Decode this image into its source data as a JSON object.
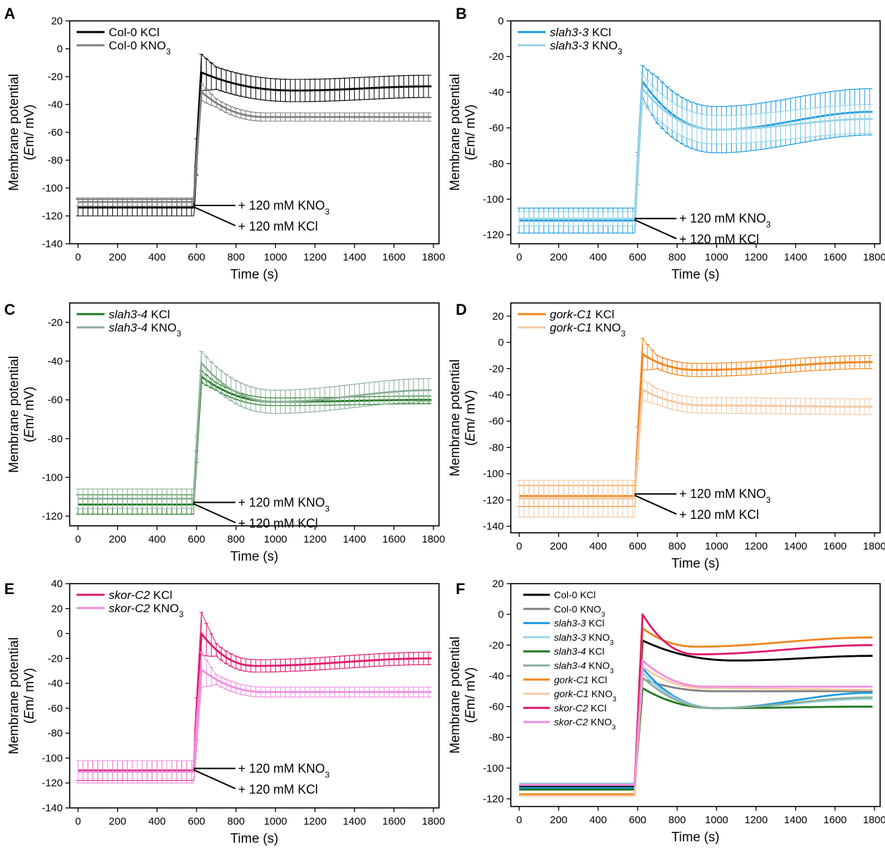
{
  "panels": [
    {
      "letter": "A",
      "ylim": [
        -140,
        20
      ],
      "yticks": [
        -140,
        -120,
        -100,
        -80,
        -60,
        -40,
        -20,
        0,
        20
      ],
      "xlim": [
        0,
        1800
      ],
      "xticks": [
        0,
        200,
        400,
        600,
        800,
        1000,
        1200,
        1400,
        1600,
        1800
      ],
      "xlabel": "Time (s)",
      "ylabel_line1": "Membrane potential",
      "ylabel_line2_pre": "(",
      "ylabel_line2_em": "E",
      "ylabel_line2_post": "m/ mV)",
      "error_bars": true,
      "series": [
        {
          "legend_italic": "",
          "legend_main": "Col-0 KCl",
          "legend_sub": "",
          "color": "#000000",
          "base": -114,
          "base_err": 6,
          "peak": -17,
          "peak_err": 13,
          "dip": -30,
          "dip_t": 1100,
          "end": -27,
          "err": 8
        },
        {
          "legend_italic": "",
          "legend_main": "Col-0 KNO",
          "legend_sub": "3",
          "color": "#808080",
          "base": -110,
          "base_err": 3,
          "peak": -31,
          "peak_err": 6,
          "dip": -49,
          "dip_t": 950,
          "end": -49,
          "err": 3
        }
      ],
      "annotations": [
        {
          "prefix": "+ 120 mM KNO",
          "sub": "3"
        },
        {
          "prefix": "+ 120 mM KCl",
          "sub": ""
        }
      ]
    },
    {
      "letter": "B",
      "ylim": [
        -125,
        0
      ],
      "yticks": [
        -120,
        -100,
        -80,
        -60,
        -40,
        -20,
        0
      ],
      "xlim": [
        0,
        1800
      ],
      "xticks": [
        0,
        200,
        400,
        600,
        800,
        1000,
        1200,
        1400,
        1600,
        1800
      ],
      "xlabel": "Time (s)",
      "ylabel_line1": "Membrane potential",
      "ylabel_line2_pre": "(",
      "ylabel_line2_em": "E",
      "ylabel_line2_post": "m/ mV)",
      "error_bars": true,
      "series": [
        {
          "legend_italic": "slah3-3",
          "legend_main": " KCl",
          "legend_sub": "",
          "color": "#1f9be0",
          "base": -112,
          "base_err": 7,
          "peak": -34,
          "peak_err": 9,
          "dip": -61,
          "dip_t": 1000,
          "end": -51,
          "err": 13
        },
        {
          "legend_italic": "slah3-3",
          "legend_main": " KNO",
          "legend_sub": "3",
          "color": "#98d3e4",
          "base": -111,
          "base_err": 4,
          "peak": -38,
          "peak_err": 8,
          "dip": -61,
          "dip_t": 1000,
          "end": -55,
          "err": 8
        }
      ],
      "annotations": [
        {
          "prefix": "+ 120 mM KNO",
          "sub": "3"
        },
        {
          "prefix": "+ 120 mM KCl",
          "sub": ""
        }
      ]
    },
    {
      "letter": "C",
      "ylim": [
        -125,
        -10
      ],
      "yticks": [
        -120,
        -100,
        -80,
        -60,
        -40,
        -20
      ],
      "xlim": [
        0,
        1800
      ],
      "xticks": [
        0,
        200,
        400,
        600,
        800,
        1000,
        1200,
        1400,
        1600,
        1800
      ],
      "xlabel": "Time (s)",
      "ylabel_line1": "Membrane potential",
      "ylabel_line2_pre": "(",
      "ylabel_line2_em": "E",
      "ylabel_line2_post": "m/ mV)",
      "error_bars": true,
      "series": [
        {
          "legend_italic": "slah3-4",
          "legend_main": " KCl",
          "legend_sub": "",
          "color": "#1f7a1f",
          "base": -114,
          "base_err": 5,
          "peak": -48,
          "peak_err": 3,
          "dip": -61,
          "dip_t": 1000,
          "end": -60,
          "err": 2
        },
        {
          "legend_italic": "slah3-4",
          "legend_main": " KNO",
          "legend_sub": "3",
          "color": "#8fb09c",
          "base": -111,
          "base_err": 5,
          "peak": -41,
          "peak_err": 6,
          "dip": -61,
          "dip_t": 1000,
          "end": -55,
          "err": 6
        }
      ],
      "annotations": [
        {
          "prefix": "+ 120 mM KNO",
          "sub": "3"
        },
        {
          "prefix": "+ 120 mM KCl",
          "sub": ""
        }
      ]
    },
    {
      "letter": "D",
      "ylim": [
        -145,
        30
      ],
      "yticks": [
        -140,
        -120,
        -100,
        -80,
        -60,
        -40,
        -20,
        0,
        20
      ],
      "xlim": [
        0,
        1800
      ],
      "xticks": [
        0,
        200,
        400,
        600,
        800,
        1000,
        1200,
        1400,
        1600,
        1800
      ],
      "xlabel": "Time (s)",
      "ylabel_line1": "Membrane potential",
      "ylabel_line2_pre": "(",
      "ylabel_line2_em": "E",
      "ylabel_line2_post": "m/ mV)",
      "error_bars": true,
      "series": [
        {
          "legend_italic": "gork-C1",
          "legend_main": " KCl",
          "legend_sub": "",
          "color": "#f0861e",
          "base": -117,
          "base_err": 8,
          "peak": -9,
          "peak_err": 12,
          "dip": -21,
          "dip_t": 900,
          "end": -15,
          "err": 5
        },
        {
          "legend_italic": "gork-C1",
          "legend_main": " KNO",
          "legend_sub": "3",
          "color": "#f3c9a4",
          "base": -119,
          "base_err": 14,
          "peak": -36,
          "peak_err": 8,
          "dip": -48,
          "dip_t": 950,
          "end": -49,
          "err": 6
        }
      ],
      "annotations": [
        {
          "prefix": "+ 120 mM KNO",
          "sub": "3"
        },
        {
          "prefix": "+ 120 mM KCl",
          "sub": ""
        }
      ]
    },
    {
      "letter": "E",
      "ylim": [
        -140,
        40
      ],
      "yticks": [
        -140,
        -120,
        -100,
        -80,
        -60,
        -40,
        -20,
        0,
        20,
        40
      ],
      "xlim": [
        0,
        1800
      ],
      "xticks": [
        0,
        200,
        400,
        600,
        800,
        1000,
        1200,
        1400,
        1600,
        1800
      ],
      "xlabel": "Time (s)",
      "ylabel_line1": "Membrane potential",
      "ylabel_line2_pre": "(",
      "ylabel_line2_em": "E",
      "ylabel_line2_post": "m/ mV)",
      "error_bars": true,
      "series": [
        {
          "legend_italic": "skor-C2",
          "legend_main": " KCl",
          "legend_sub": "",
          "color": "#e0196e",
          "base": -110,
          "base_err": 8,
          "peak": 0,
          "peak_err": 17,
          "dip": -26,
          "dip_t": 900,
          "end": -20,
          "err": 5
        },
        {
          "legend_italic": "skor-C2",
          "legend_main": " KNO",
          "legend_sub": "3",
          "color": "#ef8fe0",
          "base": -111,
          "base_err": 9,
          "peak": -29,
          "peak_err": 14,
          "dip": -47,
          "dip_t": 950,
          "end": -47,
          "err": 4
        }
      ],
      "annotations": [
        {
          "prefix": "+ 120 mM KNO",
          "sub": "3"
        },
        {
          "prefix": "+ 120 mM KCl",
          "sub": ""
        }
      ]
    },
    {
      "letter": "F",
      "ylim": [
        -125,
        20
      ],
      "yticks": [
        -120,
        -100,
        -80,
        -60,
        -40,
        -20,
        0,
        20
      ],
      "xlim": [
        0,
        1800
      ],
      "xticks": [
        0,
        200,
        400,
        600,
        800,
        1000,
        1200,
        1400,
        1600,
        1800
      ],
      "xlabel": "Time (s)",
      "ylabel_line1": "Membrane potential",
      "ylabel_line2_pre": "(",
      "ylabel_line2_em": "E",
      "ylabel_line2_post": "m/ mV)",
      "error_bars": false,
      "series": [
        {
          "legend_italic": "",
          "legend_main": "Col-0 KCl",
          "legend_sub": "",
          "color": "#000000",
          "base": -112,
          "peak": -17,
          "dip": -30,
          "dip_t": 1100,
          "end": -27
        },
        {
          "legend_italic": "",
          "legend_main": "Col-0 KNO",
          "legend_sub": "3",
          "color": "#808080",
          "base": -111,
          "peak": -42,
          "dip": -50,
          "dip_t": 1000,
          "end": -50
        },
        {
          "legend_italic": "slah3-3",
          "legend_main": " KCl",
          "legend_sub": "",
          "color": "#1f9be0",
          "base": -113,
          "peak": -35,
          "dip": -61,
          "dip_t": 1000,
          "end": -51
        },
        {
          "legend_italic": "slah3-3",
          "legend_main": " KNO",
          "legend_sub": "3",
          "color": "#98d3e4",
          "base": -110,
          "peak": -38,
          "dip": -61,
          "dip_t": 1000,
          "end": -55
        },
        {
          "legend_italic": "slah3-4",
          "legend_main": " KCl",
          "legend_sub": "",
          "color": "#1f7a1f",
          "base": -114,
          "peak": -48,
          "dip": -61,
          "dip_t": 1000,
          "end": -60
        },
        {
          "legend_italic": "slah3-4",
          "legend_main": " KNO",
          "legend_sub": "3",
          "color": "#8fb09c",
          "base": -111,
          "peak": -41,
          "dip": -61,
          "dip_t": 1000,
          "end": -54
        },
        {
          "legend_italic": "gork-C1",
          "legend_main": " KCl",
          "legend_sub": "",
          "color": "#f0861e",
          "base": -117,
          "peak": -9,
          "dip": -21,
          "dip_t": 900,
          "end": -15
        },
        {
          "legend_italic": "gork-C1",
          "legend_main": " KNO",
          "legend_sub": "3",
          "color": "#f3c9a4",
          "base": -118,
          "peak": -34,
          "dip": -48,
          "dip_t": 950,
          "end": -49
        },
        {
          "legend_italic": "skor-C2",
          "legend_main": " KCl",
          "legend_sub": "",
          "color": "#e0196e",
          "base": -111,
          "peak": 0,
          "dip": -26,
          "dip_t": 900,
          "end": -20
        },
        {
          "legend_italic": "skor-C2",
          "legend_main": " KNO",
          "legend_sub": "3",
          "color": "#ef8fe0",
          "base": -111,
          "peak": -30,
          "dip": -47,
          "dip_t": 950,
          "end": -47
        }
      ],
      "annotations": []
    }
  ]
}
